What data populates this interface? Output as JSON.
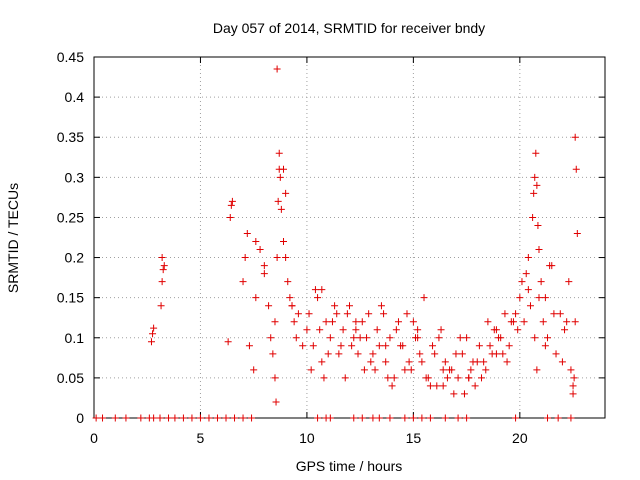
{
  "chart_data": {
    "type": "scatter",
    "title": "Day 057 of 2014, SRMTID for receiver bndy",
    "xlabel": "GPS time / hours",
    "ylabel": "SRMTID / TECUs",
    "xlim": [
      0,
      24
    ],
    "ylim": [
      0,
      0.45
    ],
    "x_ticks": [
      0,
      5,
      10,
      15,
      20
    ],
    "x_tick_labels": [
      "0",
      "5",
      "10",
      "15",
      "20"
    ],
    "y_ticks": [
      0,
      0.05,
      0.1,
      0.15,
      0.2,
      0.25,
      0.3,
      0.35,
      0.4,
      0.45
    ],
    "y_tick_labels": [
      "0",
      "0.05",
      "0.1",
      "0.15",
      "0.2",
      "0.25",
      "0.3",
      "0.35",
      "0.4",
      "0.45"
    ],
    "grid": true,
    "marker": "+",
    "colors": {
      "series": "#e00000",
      "grid": "#a0a0a0",
      "axis": "#000000"
    },
    "series": [
      {
        "name": "SRMTID",
        "x": [
          0.1,
          0.4,
          1.0,
          1.5,
          2.2,
          2.6,
          2.8,
          3.1,
          3.5,
          3.8,
          4.2,
          4.6,
          5.0,
          5.4,
          5.8,
          6.2,
          6.6,
          7.0,
          7.4,
          2.7,
          2.75,
          2.8,
          3.15,
          3.2,
          3.25,
          3.3,
          3.2,
          6.4,
          6.45,
          6.5,
          6.3,
          7.0,
          7.1,
          7.2,
          7.3,
          7.5,
          7.6,
          7.8,
          8.0,
          8.2,
          8.3,
          8.4,
          8.5,
          8.55,
          8.6,
          8.65,
          8.7,
          8.75,
          8.8,
          8.9,
          9.0,
          9.1,
          9.2,
          9.3,
          9.4,
          9.5,
          9.6,
          9.8,
          10.0,
          8.6,
          8.7,
          8.9,
          9.0,
          8.5,
          10.1,
          10.3,
          10.5,
          10.7,
          10.9,
          11.1,
          11.3,
          11.5,
          11.7,
          11.9,
          12.1,
          12.3,
          12.5,
          12.7,
          12.9,
          13.1,
          13.3,
          13.5,
          13.7,
          13.9,
          14.1,
          14.3,
          14.5,
          14.7,
          14.9,
          15.1,
          15.3,
          15.5,
          15.7,
          15.9,
          16.1,
          16.3,
          16.5,
          16.7,
          16.9,
          17.1,
          17.3,
          17.5,
          17.7,
          17.9,
          18.1,
          18.3,
          18.5,
          18.7,
          18.9,
          19.1,
          19.3,
          19.5,
          19.7,
          19.9,
          10.2,
          10.6,
          11.0,
          11.4,
          11.8,
          12.2,
          12.6,
          13.0,
          13.4,
          13.8,
          14.2,
          14.6,
          15.0,
          15.4,
          15.8,
          16.2,
          16.6,
          17.0,
          17.4,
          17.8,
          18.2,
          18.6,
          19.0,
          19.4,
          19.8,
          10.4,
          10.8,
          11.2,
          11.6,
          12.0,
          12.4,
          12.8,
          13.2,
          13.6,
          14.0,
          14.4,
          14.8,
          15.2,
          15.6,
          16.0,
          16.4,
          16.8,
          17.2,
          17.6,
          18.0,
          18.4,
          18.8,
          19.2,
          19.6,
          20.0,
          20.1,
          20.2,
          20.3,
          20.4,
          20.5,
          20.6,
          20.65,
          20.7,
          20.75,
          20.8,
          20.85,
          20.9,
          21.0,
          21.1,
          21.2,
          21.3,
          21.5,
          21.7,
          21.9,
          22.1,
          22.3,
          22.5,
          22.55,
          22.6,
          22.65,
          22.7,
          20.7,
          20.8,
          20.9,
          21.2,
          21.6,
          22.0,
          22.4,
          22.5,
          22.6,
          7.6,
          8.0,
          9.3,
          10.7,
          12.3,
          13.7,
          15.2,
          16.4,
          17.6,
          18.9,
          20.4,
          21.4,
          22.2,
          10.5,
          10.9,
          11.1,
          12.2,
          12.6,
          13.1,
          13.4,
          13.9,
          14.6,
          15.0,
          15.4,
          15.8,
          16.5,
          17.1,
          17.5,
          19.8,
          21.3,
          21.8,
          22.4
        ],
        "y": [
          0,
          0,
          0,
          0,
          0,
          0,
          0,
          0,
          0,
          0,
          0,
          0,
          0,
          0,
          0,
          0,
          0,
          0,
          0,
          0.095,
          0.105,
          0.112,
          0.14,
          0.17,
          0.185,
          0.19,
          0.2,
          0.25,
          0.265,
          0.27,
          0.095,
          0.17,
          0.2,
          0.23,
          0.09,
          0.06,
          0.15,
          0.21,
          0.19,
          0.14,
          0.1,
          0.08,
          0.05,
          0.02,
          0.2,
          0.27,
          0.31,
          0.3,
          0.26,
          0.22,
          0.2,
          0.17,
          0.15,
          0.14,
          0.12,
          0.1,
          0.13,
          0.09,
          0.11,
          0.435,
          0.33,
          0.31,
          0.28,
          0.12,
          0.13,
          0.09,
          0.15,
          0.07,
          0.12,
          0.1,
          0.14,
          0.08,
          0.11,
          0.13,
          0.09,
          0.12,
          0.1,
          0.06,
          0.13,
          0.08,
          0.11,
          0.14,
          0.07,
          0.1,
          0.05,
          0.12,
          0.09,
          0.13,
          0.06,
          0.1,
          0.08,
          0.15,
          0.05,
          0.09,
          0.04,
          0.11,
          0.07,
          0.06,
          0.03,
          0.05,
          0.08,
          0.1,
          0.06,
          0.04,
          0.09,
          0.07,
          0.12,
          0.08,
          0.11,
          0.1,
          0.13,
          0.09,
          0.12,
          0.11,
          0.06,
          0.11,
          0.08,
          0.13,
          0.05,
          0.1,
          0.12,
          0.07,
          0.09,
          0.05,
          0.11,
          0.06,
          0.12,
          0.07,
          0.04,
          0.1,
          0.05,
          0.08,
          0.03,
          0.07,
          0.05,
          0.09,
          0.1,
          0.07,
          0.13,
          0.16,
          0.05,
          0.12,
          0.09,
          0.14,
          0.08,
          0.1,
          0.06,
          0.13,
          0.04,
          0.09,
          0.07,
          0.11,
          0.05,
          0.08,
          0.04,
          0.06,
          0.1,
          0.05,
          0.07,
          0.06,
          0.11,
          0.08,
          0.12,
          0.15,
          0.17,
          0.12,
          0.18,
          0.2,
          0.14,
          0.25,
          0.28,
          0.3,
          0.33,
          0.29,
          0.24,
          0.21,
          0.17,
          0.12,
          0.15,
          0.1,
          0.19,
          0.08,
          0.13,
          0.11,
          0.17,
          0.03,
          0.05,
          0.35,
          0.31,
          0.23,
          0.1,
          0.06,
          0.15,
          0.09,
          0.13,
          0.07,
          0.06,
          0.04,
          0.12,
          0.22,
          0.18,
          0.14,
          0.16,
          0.11,
          0.09,
          0.1,
          0.06,
          0.05,
          0.08,
          0.16,
          0.19,
          0.12,
          0.0,
          0.0,
          0.0,
          0.0,
          0.0,
          0.0,
          0.0,
          0.0,
          0.0,
          0.0,
          0.0,
          0.0,
          0.0,
          0.0,
          0.0,
          0.0,
          0.0,
          0.0,
          0.0
        ]
      }
    ]
  }
}
